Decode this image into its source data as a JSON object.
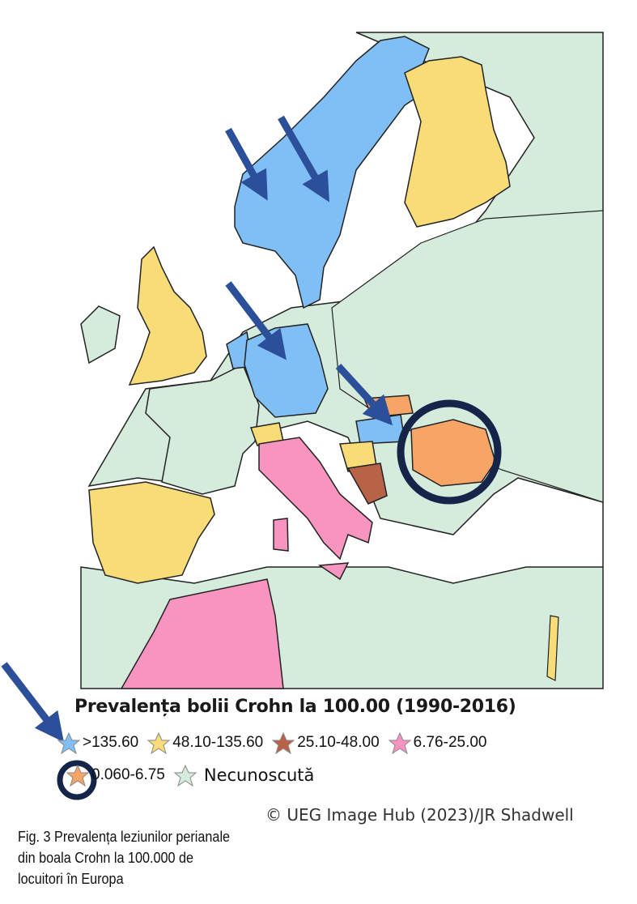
{
  "legend": {
    "title": "Prevalența bolii Crohn la 100.00 (1990-2016)",
    "items": [
      {
        "label": ">135.60",
        "color": "#80bff5"
      },
      {
        "label": "48.10-135.60",
        "color": "#f8dc78"
      },
      {
        "label": "25.10-48.00",
        "color": "#b86347"
      },
      {
        "label": "6.76-25.00",
        "color": "#f795c0"
      },
      {
        "label": "0.060-6.75",
        "color": "#f6a567"
      },
      {
        "label": "Necunoscută",
        "color": "#d5ebdc"
      }
    ]
  },
  "highlights": {
    "arrow_color": "#2c4f9a",
    "circle_color": "#15254a"
  },
  "copyright": "© UEG Image Hub (2023)/JR Shadwell",
  "caption": "Fig. 3 Prevalența leziunilor perianale din boala Crohn la 100.000 de locuitori în Europa"
}
